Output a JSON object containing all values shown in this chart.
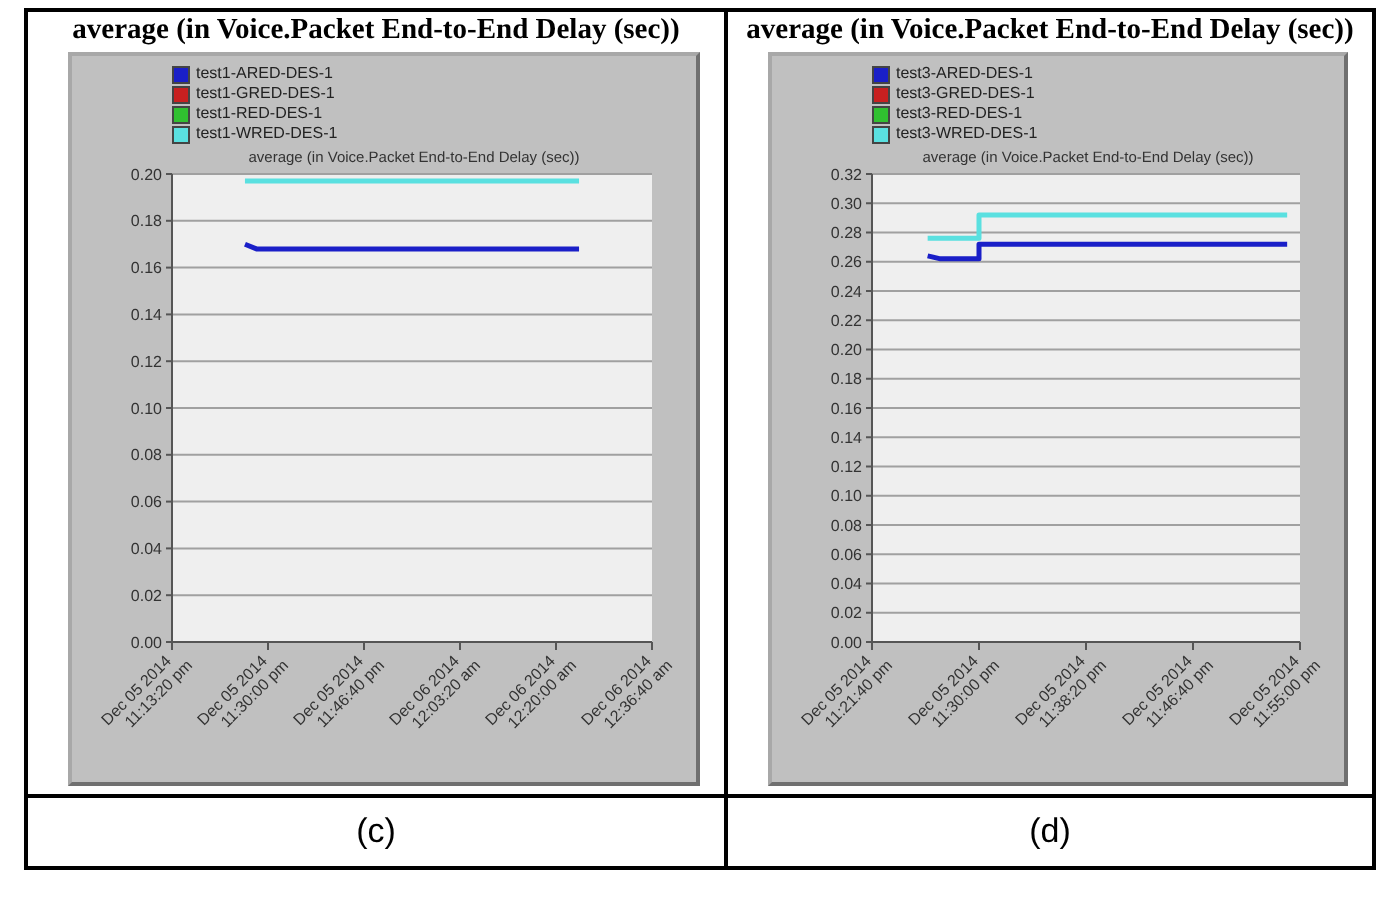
{
  "chart_data": [
    {
      "type": "line",
      "title": "average (in Voice.Packet End-to-End Delay (sec))",
      "subtitle": "average (in Voice.Packet End-to-End Delay (sec))",
      "annotations": [
        "(c)"
      ],
      "legend": "top left",
      "grid": "y",
      "marker": "none",
      "line_style": "solid",
      "xlim": [
        "2014-12-05T23:13:20",
        "2014-12-06T00:36:40"
      ],
      "xticks": [
        {
          "value": "2014-12-05T23:13:20",
          "label": "Dec 05 2014 11:13:20 pm"
        },
        {
          "value": "2014-12-05T23:30:00",
          "label": "Dec 05 2014 11:30:00 pm"
        },
        {
          "value": "2014-12-05T23:46:40",
          "label": "Dec 05 2014 11:46:40 pm"
        },
        {
          "value": "2014-12-06T00:03:20",
          "label": "Dec 06 2014 12:03:20 am"
        },
        {
          "value": "2014-12-06T00:20:00",
          "label": "Dec 06 2014 12:20:00 am"
        },
        {
          "value": "2014-12-06T00:36:40",
          "label": "Dec 06 2014 12:36:40 am"
        }
      ],
      "ylim": [
        0,
        0.2
      ],
      "yticks": [
        {
          "value": 0,
          "label": "0.00"
        },
        {
          "value": 0.02,
          "label": "0.02"
        },
        {
          "value": 0.04,
          "label": "0.04"
        },
        {
          "value": 0.06,
          "label": "0.06"
        },
        {
          "value": 0.08,
          "label": "0.08"
        },
        {
          "value": 0.1,
          "label": "0.10"
        },
        {
          "value": 0.12,
          "label": "0.12"
        },
        {
          "value": 0.14,
          "label": "0.14"
        },
        {
          "value": 0.16,
          "label": "0.16"
        },
        {
          "value": 0.18,
          "label": "0.18"
        },
        {
          "value": 0.2,
          "label": "0.20"
        }
      ],
      "series": [
        {
          "name": "test1-ARED-DES-1",
          "color": "#1a1fc8",
          "x": [
            "2014-12-05T23:26",
            "2014-12-05T23:28",
            "2014-12-06T00:24"
          ],
          "values": [
            0.17,
            0.168,
            0.168
          ]
        },
        {
          "name": "test1-GRED-DES-1",
          "color": "#c82020"
        },
        {
          "name": "test1-RED-DES-1",
          "color": "#30c030"
        },
        {
          "name": "test1-WRED-DES-1",
          "color": "#5ae0e0",
          "x": [
            "2014-12-05T23:26",
            "2014-12-06T00:24"
          ],
          "values": [
            0.197,
            0.197
          ]
        }
      ]
    },
    {
      "type": "line",
      "title": "average (in Voice.Packet End-to-End Delay (sec))",
      "subtitle": "average (in Voice.Packet End-to-End Delay (sec))",
      "annotations": [
        "(d)"
      ],
      "legend": "top left",
      "grid": "y",
      "marker": "none",
      "line_style": "solid",
      "xlim": [
        "2014-12-05T23:21:40",
        "2014-12-05T23:55:00"
      ],
      "xticks": [
        {
          "value": "2014-12-05T23:21:40",
          "label": "Dec 05 2014 11:21:40 pm"
        },
        {
          "value": "2014-12-05T23:30:00",
          "label": "Dec 05 2014 11:30:00 pm"
        },
        {
          "value": "2014-12-05T23:38:20",
          "label": "Dec 05 2014 11:38:20 pm"
        },
        {
          "value": "2014-12-05T23:46:40",
          "label": "Dec 05 2014 11:46:40 pm"
        },
        {
          "value": "2014-12-05T23:55:00",
          "label": "Dec 05 2014 11:55:00 pm"
        }
      ],
      "ylim": [
        0,
        0.32
      ],
      "yticks": [
        {
          "value": 0,
          "label": "0.00"
        },
        {
          "value": 0.02,
          "label": "0.02"
        },
        {
          "value": 0.04,
          "label": "0.04"
        },
        {
          "value": 0.06,
          "label": "0.06"
        },
        {
          "value": 0.08,
          "label": "0.08"
        },
        {
          "value": 0.1,
          "label": "0.10"
        },
        {
          "value": 0.12,
          "label": "0.12"
        },
        {
          "value": 0.14,
          "label": "0.14"
        },
        {
          "value": 0.16,
          "label": "0.16"
        },
        {
          "value": 0.18,
          "label": "0.18"
        },
        {
          "value": 0.2,
          "label": "0.20"
        },
        {
          "value": 0.22,
          "label": "0.22"
        },
        {
          "value": 0.24,
          "label": "0.24"
        },
        {
          "value": 0.26,
          "label": "0.26"
        },
        {
          "value": 0.28,
          "label": "0.28"
        },
        {
          "value": 0.3,
          "label": "0.30"
        },
        {
          "value": 0.32,
          "label": "0.32"
        }
      ],
      "series": [
        {
          "name": "test3-ARED-DES-1",
          "color": "#1a1fc8",
          "x": [
            "2014-12-05T23:26",
            "2014-12-05T23:27",
            "2014-12-05T23:30",
            "2014-12-05T23:30",
            "2014-12-05T23:54"
          ],
          "values": [
            0.264,
            0.262,
            0.262,
            0.272,
            0.272
          ]
        },
        {
          "name": "test3-GRED-DES-1",
          "color": "#c82020"
        },
        {
          "name": "test3-RED-DES-1",
          "color": "#30c030"
        },
        {
          "name": "test3-WRED-DES-1",
          "color": "#5ae0e0",
          "x": [
            "2014-12-05T23:26",
            "2014-12-05T23:30",
            "2014-12-05T23:30",
            "2014-12-05T23:54"
          ],
          "values": [
            0.276,
            0.276,
            0.292,
            0.292
          ]
        }
      ]
    }
  ]
}
